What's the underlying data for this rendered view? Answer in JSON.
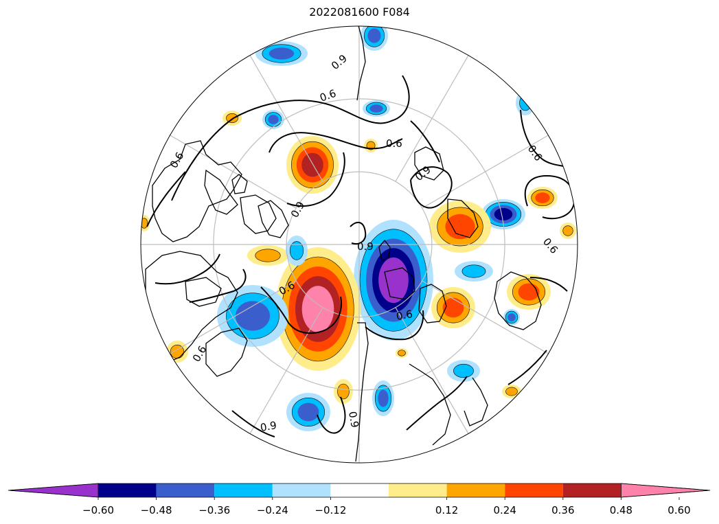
{
  "title": "2022081600 F084",
  "map": {
    "projection": "north-polar-stereographic",
    "contour_labels": [
      "0.6",
      "0.6",
      "0.6",
      "0.6",
      "0.6",
      "0.6",
      "0.6",
      "0.6",
      "0.9",
      "0.9",
      "0.9",
      "0.9",
      "0.9",
      "0.9"
    ],
    "colors": {
      "purple": "#9932cc",
      "navy": "#00008b",
      "royal": "#3a5fcd",
      "cyan": "#00bfff",
      "light_blue": "#b0e2ff",
      "light_yellow": "#ffec8b",
      "orange": "#ffa500",
      "red_orange": "#ff4500",
      "dark_red": "#b22222",
      "pink": "#ff82ab"
    }
  },
  "colorbar": {
    "tick_labels": [
      "−0.60",
      "−0.48",
      "−0.36",
      "−0.24",
      "−0.12",
      "0.12",
      "0.24",
      "0.36",
      "0.48",
      "0.60"
    ],
    "segment_colors": [
      "#9932cc",
      "#00008b",
      "#3a5fcd",
      "#00bfff",
      "#b0e2ff",
      "#ffffff",
      "#ffec8b",
      "#ffa500",
      "#ff4500",
      "#b22222",
      "#ff82ab"
    ]
  }
}
